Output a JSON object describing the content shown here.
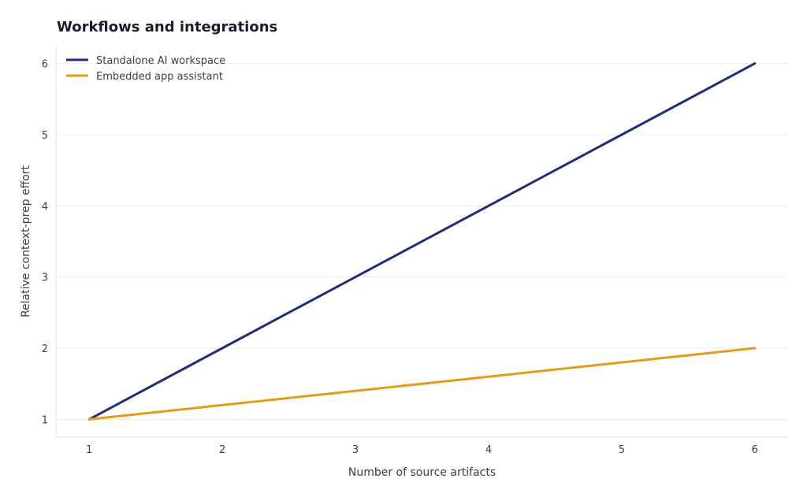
{
  "chart_data": {
    "type": "line",
    "title": "Workflows and integrations",
    "xlabel": "Number of source artifacts",
    "ylabel": "Relative context-prep effort",
    "x": [
      1,
      2,
      3,
      4,
      5,
      6
    ],
    "xticks": [
      1,
      2,
      3,
      4,
      5,
      6
    ],
    "yticks": [
      1,
      2,
      3,
      4,
      5,
      6
    ],
    "xlim": [
      0.75,
      6.25
    ],
    "ylim": [
      0.75,
      6.25
    ],
    "grid": "horizontal",
    "legend_position": "top-left",
    "series": [
      {
        "name": "Standalone AI workspace",
        "color": "#1f2d7a",
        "values": [
          1,
          2,
          3,
          4,
          5,
          6
        ]
      },
      {
        "name": "Embedded app assistant",
        "color": "#e69b17",
        "values": [
          1,
          1.2,
          1.4,
          1.6,
          1.8,
          2
        ]
      }
    ]
  }
}
